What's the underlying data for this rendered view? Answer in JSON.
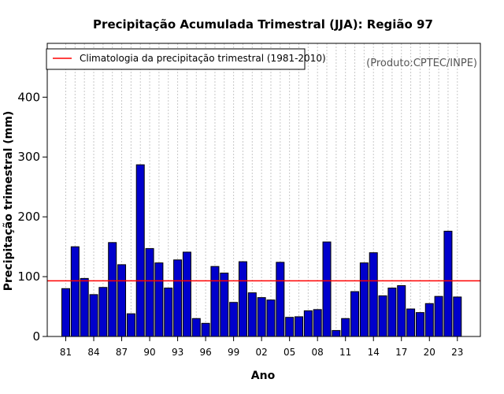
{
  "chart_data": {
    "type": "bar",
    "title": "Precipitação Acumulada Trimestral (JJA): Região 97",
    "xlabel": "Ano",
    "ylabel": "Precipitação trimestral (mm)",
    "ylim": [
      0,
      490
    ],
    "yticks": [
      "0",
      "100",
      "200",
      "300",
      "400"
    ],
    "ytick_values": [
      0,
      100,
      200,
      300,
      400
    ],
    "categories": [
      "81",
      "82",
      "83",
      "84",
      "85",
      "86",
      "87",
      "88",
      "89",
      "90",
      "91",
      "92",
      "93",
      "94",
      "95",
      "96",
      "97",
      "98",
      "99",
      "00",
      "01",
      "02",
      "03",
      "04",
      "05",
      "06",
      "07",
      "08",
      "09",
      "10",
      "11",
      "12",
      "13",
      "14",
      "15",
      "16",
      "17",
      "18",
      "19",
      "20",
      "21",
      "22",
      "23"
    ],
    "values": [
      80,
      150,
      97,
      70,
      82,
      157,
      120,
      38,
      287,
      147,
      123,
      81,
      128,
      141,
      30,
      22,
      117,
      106,
      57,
      125,
      73,
      65,
      61,
      124,
      32,
      33,
      43,
      45,
      158,
      10,
      30,
      75,
      123,
      140,
      68,
      81,
      85,
      46,
      40,
      55,
      67,
      176,
      66
    ],
    "xtick_labels": [
      "81",
      "84",
      "87",
      "90",
      "93",
      "96",
      "99",
      "02",
      "05",
      "08",
      "11",
      "14",
      "17",
      "20",
      "23"
    ],
    "xtick_indices": [
      0,
      3,
      6,
      9,
      12,
      15,
      18,
      21,
      24,
      27,
      30,
      33,
      36,
      39,
      42
    ],
    "climatology": 93,
    "legend": {
      "label": "Climatologia da precipitação trimestral (1981-2010)",
      "position": "top-left"
    },
    "credit": "(Produto:CPTEC/INPE)",
    "grid": "vertical dotted",
    "colors": {
      "bar_fill": "#0000cc",
      "bar_stroke": "#000000",
      "climatology_line": "#ff0000",
      "grid": "#c8c8c8"
    }
  }
}
